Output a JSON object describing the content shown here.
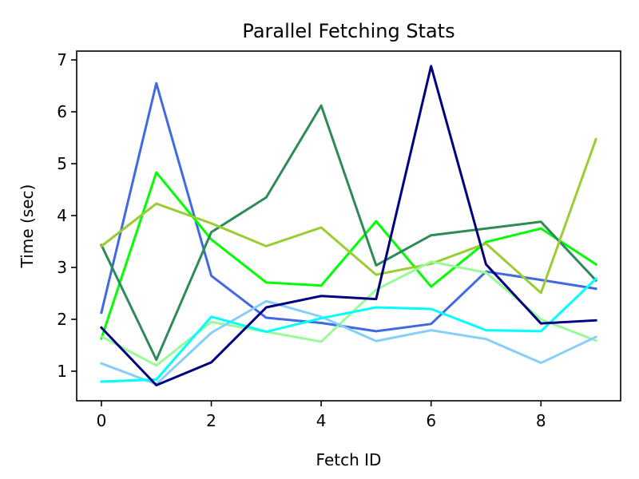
{
  "chart_data": {
    "type": "line",
    "title": "Parallel Fetching Stats",
    "xlabel": "Fetch ID",
    "ylabel": "Time (sec)",
    "xlim": [
      -0.45,
      9.45
    ],
    "ylim": [
      0.43,
      7.17
    ],
    "xticks": [
      0,
      2,
      4,
      6,
      8
    ],
    "yticks": [
      1,
      2,
      3,
      4,
      5,
      6,
      7
    ],
    "grid": false,
    "x": [
      0,
      1,
      2,
      3,
      4,
      5,
      6,
      7,
      8,
      9
    ],
    "series": [
      {
        "color": "#4169e1",
        "values": [
          2.13,
          6.55,
          2.84,
          2.03,
          1.93,
          1.77,
          1.91,
          2.92,
          2.76,
          2.59
        ]
      },
      {
        "color": "#00ff00",
        "values": [
          1.63,
          4.83,
          3.54,
          2.71,
          2.65,
          3.89,
          2.63,
          3.49,
          3.75,
          3.06
        ]
      },
      {
        "color": "#2e8b57",
        "values": [
          3.43,
          1.22,
          3.68,
          4.35,
          6.12,
          3.04,
          3.62,
          3.75,
          3.88,
          2.75
        ]
      },
      {
        "color": "#9acd32",
        "values": [
          3.41,
          4.23,
          3.85,
          3.41,
          3.77,
          2.86,
          3.07,
          3.46,
          2.51,
          5.47
        ]
      },
      {
        "color": "#98fb98",
        "values": [
          1.67,
          1.11,
          1.95,
          1.76,
          1.57,
          2.57,
          3.11,
          2.9,
          2.0,
          1.59
        ]
      },
      {
        "color": "#87cefa",
        "values": [
          1.15,
          0.75,
          1.74,
          2.35,
          2.05,
          1.58,
          1.79,
          1.62,
          1.16,
          1.66
        ]
      },
      {
        "color": "#00ffff",
        "values": [
          0.8,
          0.84,
          2.05,
          1.76,
          2.02,
          2.23,
          2.2,
          1.79,
          1.77,
          2.78
        ]
      },
      {
        "color": "#000080",
        "values": [
          1.84,
          0.73,
          1.17,
          2.23,
          2.45,
          2.39,
          6.88,
          3.06,
          1.92,
          1.98
        ]
      }
    ]
  }
}
